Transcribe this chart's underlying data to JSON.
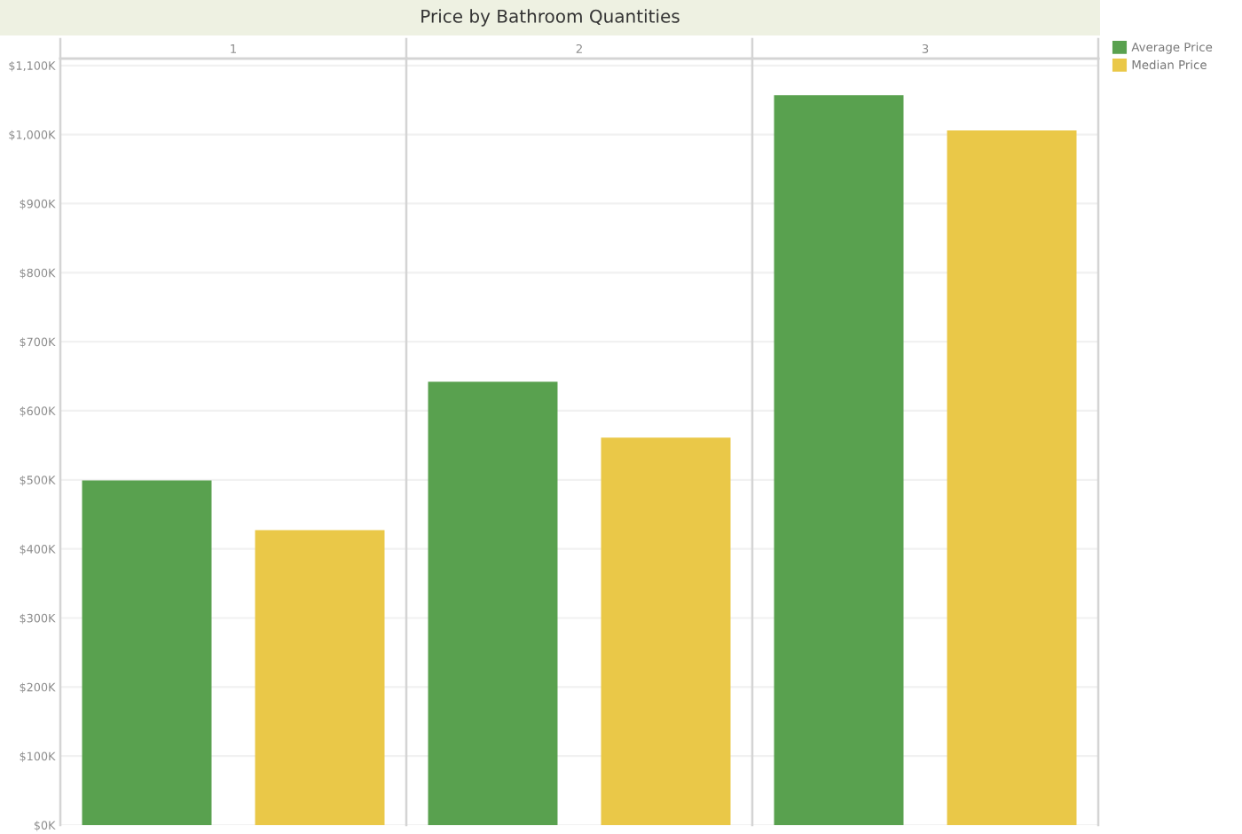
{
  "chart_data": {
    "type": "bar",
    "title": "Price by Bathroom Quantities",
    "categories": [
      "1",
      "2",
      "3"
    ],
    "series": [
      {
        "name": "Average Price",
        "color": "#59a14f",
        "values": [
          498,
          641,
          1056
        ]
      },
      {
        "name": "Median Price",
        "color": "#eac848",
        "values": [
          426,
          560,
          1005
        ]
      }
    ],
    "ylim": [
      0,
      1110
    ],
    "yticks": [
      {
        "value": 0,
        "label": "$0K"
      },
      {
        "value": 100,
        "label": "$100K"
      },
      {
        "value": 200,
        "label": "$200K"
      },
      {
        "value": 300,
        "label": "$300K"
      },
      {
        "value": 400,
        "label": "$400K"
      },
      {
        "value": 500,
        "label": "$500K"
      },
      {
        "value": 600,
        "label": "$600K"
      },
      {
        "value": 700,
        "label": "$700K"
      },
      {
        "value": 800,
        "label": "$800K"
      },
      {
        "value": 900,
        "label": "$900K"
      },
      {
        "value": 1000,
        "label": "$1,000K"
      },
      {
        "value": 1100,
        "label": "$1,100K"
      }
    ],
    "grid": "y",
    "legend": "top right"
  }
}
